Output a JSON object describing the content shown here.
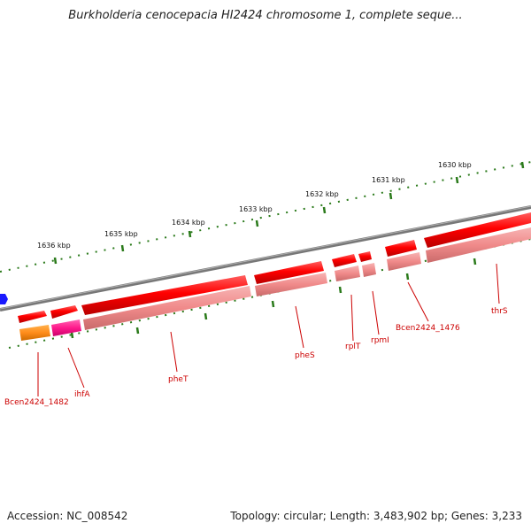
{
  "title": "Burkholderia cenocepacia HI2424 chromosome 1, complete seque...",
  "accession": "Accession: NC_008542",
  "topology_summary": "Topology: circular; Length: 3,483,902 bp; Genes: 3,233",
  "colors": {
    "backbone": "#777777",
    "tick": "#2a7a1a",
    "label": "#cc0000",
    "gene_strong": "#ff0000",
    "gene_light": "#f08a8a",
    "gene_orange": "#ff8c1a",
    "gene_magenta": "#ff1a8c",
    "origin_marker": "#1a1aff"
  },
  "scale_labels": [
    "1636 kbp",
    "1635 kbp",
    "1634 kbp",
    "1633 kbp",
    "1632 kbp",
    "1631 kbp",
    "1630 kbp"
  ],
  "gene_labels": [
    "Bcen2424_1482",
    "ihfA",
    "pheT",
    "pheS",
    "rplT",
    "rpmI",
    "Bcen2424_1476",
    "thrS"
  ]
}
